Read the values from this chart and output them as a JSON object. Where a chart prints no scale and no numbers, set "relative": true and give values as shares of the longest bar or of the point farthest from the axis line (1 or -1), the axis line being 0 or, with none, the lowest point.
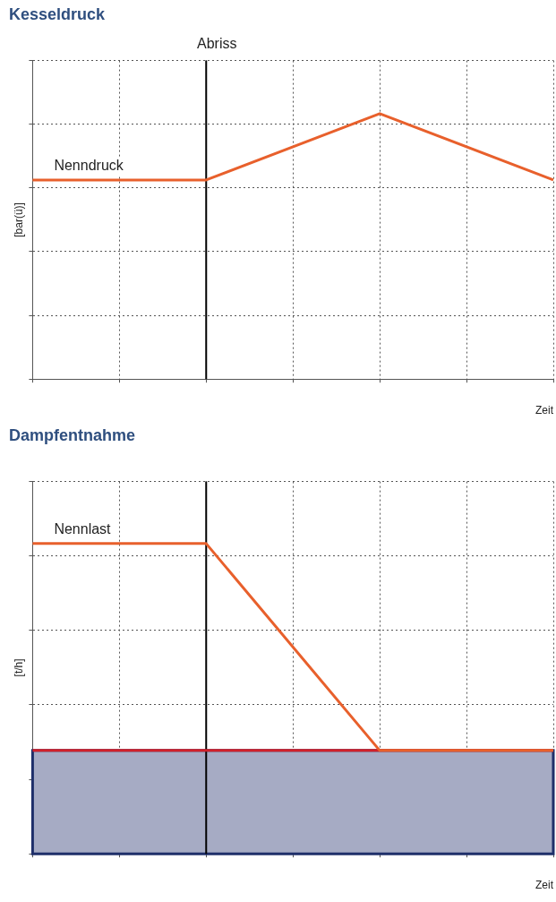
{
  "chart_data": [
    {
      "type": "line",
      "title": "Kesseldruck",
      "ylabel": "[bar(ü)]",
      "xlabel": "Zeit",
      "relative": true,
      "categories": [
        null,
        null,
        null,
        null,
        null,
        null,
        null
      ],
      "series": [
        {
          "color": "#e8602c",
          "values": [
            0.75,
            null,
            0.75,
            null,
            1,
            null,
            0.75
          ]
        }
      ],
      "annotations": [
        "Abriss",
        {
          "text": "Nenndruck",
          "y": 0.75
        }
      ],
      "grid": true,
      "legend": false,
      "marker": "none",
      "line_style": "solid"
    },
    {
      "type": "line",
      "title": "Dampfentnahme",
      "ylabel": "[t/h]",
      "xlabel": "Zeit",
      "relative": true,
      "categories": [
        null,
        null,
        null,
        null,
        null,
        null,
        null
      ],
      "series": [
        {
          "color": "#e8602c",
          "values": [
            1,
            null,
            1,
            null,
            0.333,
            null,
            0.333
          ]
        }
      ],
      "ref_lines": [
        {
          "axis": "y",
          "value": 0.333,
          "color": "#d0202a"
        }
      ],
      "bands": [
        {
          "axis": "y",
          "from": 0,
          "to": 0.333,
          "color": "#a6abc4"
        }
      ],
      "annotations": [
        {
          "text": "Nennlast",
          "y": 1
        }
      ],
      "grid": true,
      "legend": false,
      "marker": "none",
      "line_style": "solid"
    }
  ]
}
